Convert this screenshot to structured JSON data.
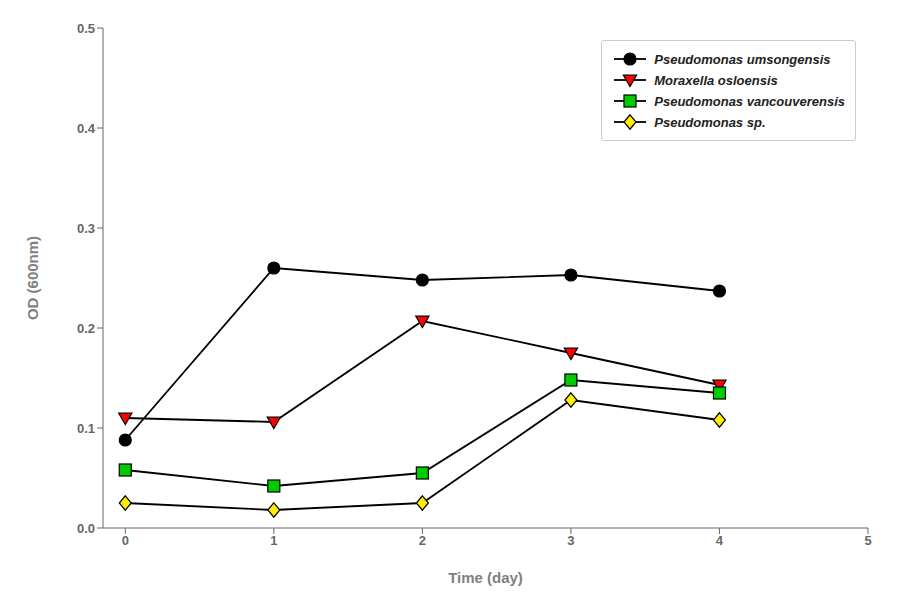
{
  "chart_data": {
    "type": "line",
    "xlabel": "Time (day)",
    "ylabel": "OD (600nm)",
    "xlim": [
      -0.15,
      5
    ],
    "ylim": [
      0,
      0.5
    ],
    "xticks": [
      0,
      1,
      2,
      3,
      4,
      5
    ],
    "yticks": [
      {
        "value": 0,
        "label": "0.0"
      },
      0.1,
      0.2,
      0.3,
      0.4,
      0.5
    ],
    "grid": false,
    "legend": "upper right",
    "series": [
      {
        "name": "Pseudomonas umsongensis",
        "x": [
          0,
          1,
          2,
          3,
          4
        ],
        "values": [
          0.088,
          0.26,
          0.248,
          0.253,
          0.237
        ],
        "color": "#000000",
        "marker": "circle",
        "line_style": "solid"
      },
      {
        "name": "Moraxella osloensis",
        "x": [
          0,
          1,
          2,
          3,
          4
        ],
        "values": [
          0.11,
          0.106,
          0.207,
          0.175,
          0.143
        ],
        "color": "#ff0000",
        "marker": "triangle-down",
        "line_style": "solid"
      },
      {
        "name": "Pseudomonas vancouverensis",
        "x": [
          0,
          1,
          2,
          3,
          4
        ],
        "values": [
          0.058,
          0.042,
          0.055,
          0.148,
          0.135
        ],
        "color": "#00cc00",
        "marker": "square",
        "line_style": "solid"
      },
      {
        "name": "Pseudomonas sp.",
        "x": [
          0,
          1,
          2,
          3,
          4
        ],
        "values": [
          0.025,
          0.018,
          0.025,
          0.128,
          0.108
        ],
        "color": "#ffee00",
        "marker": "diamond",
        "line_style": "solid"
      }
    ]
  }
}
